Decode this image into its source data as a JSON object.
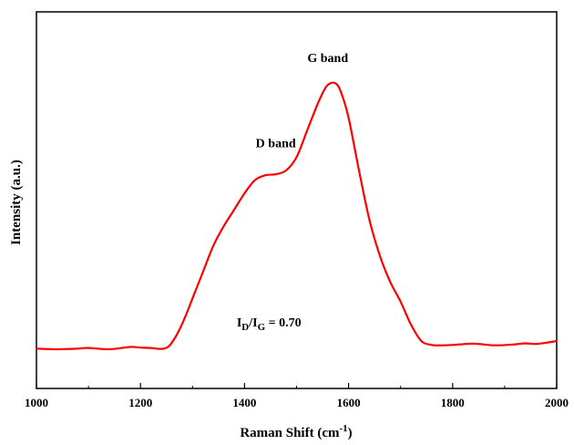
{
  "chart_data": {
    "type": "line",
    "xlabel": "Raman Shift (cm",
    "xlabel_sup": "-1",
    "xlabel_close": ")",
    "ylabel": "Intensity (a.u.)",
    "xlim": [
      1000,
      2000
    ],
    "ylim": [
      0,
      1
    ],
    "xticks": [
      1000,
      1200,
      1400,
      1600,
      1800,
      2000
    ],
    "grid": false,
    "y_tick_labels_shown": false,
    "line_color": "#ff0000",
    "series": [
      {
        "x": [
          1000,
          1040,
          1080,
          1100,
          1140,
          1180,
          1200,
          1220,
          1240,
          1255,
          1270,
          1285,
          1300,
          1320,
          1340,
          1360,
          1380,
          1400,
          1420,
          1440,
          1460,
          1480,
          1500,
          1520,
          1540,
          1555,
          1565,
          1575,
          1585,
          1600,
          1620,
          1640,
          1660,
          1680,
          1700,
          1720,
          1740,
          1760,
          1780,
          1800,
          1840,
          1880,
          1920,
          1940,
          1960,
          1980,
          2000
        ],
        "y": [
          0.077,
          0.075,
          0.077,
          0.079,
          0.075,
          0.082,
          0.08,
          0.079,
          0.076,
          0.085,
          0.12,
          0.17,
          0.23,
          0.31,
          0.39,
          0.45,
          0.5,
          0.55,
          0.59,
          0.605,
          0.608,
          0.62,
          0.66,
          0.74,
          0.82,
          0.87,
          0.885,
          0.885,
          0.86,
          0.78,
          0.62,
          0.47,
          0.36,
          0.28,
          0.22,
          0.15,
          0.1,
          0.088,
          0.087,
          0.088,
          0.092,
          0.087,
          0.09,
          0.093,
          0.091,
          0.095,
          0.1
        ]
      }
    ],
    "annotations": [
      {
        "text": "D band",
        "x": 1460,
        "y": 0.69
      },
      {
        "text": "G band",
        "x": 1560,
        "y": 0.95
      }
    ],
    "ratio_annotation": {
      "prefix": "I",
      "sub1": "D",
      "slash": "/I",
      "sub2": "G",
      "suffix": " =  0.70",
      "x": 1385,
      "y": 0.145
    }
  }
}
